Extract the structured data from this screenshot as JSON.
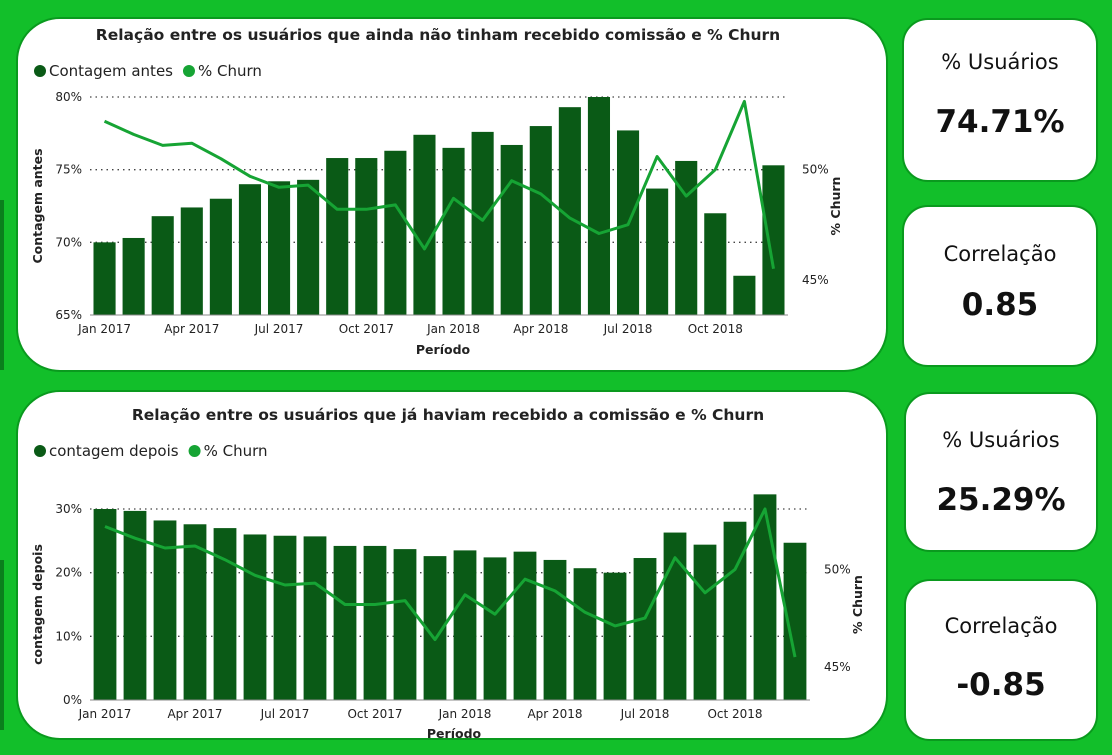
{
  "colors": {
    "background": "#12bf2a",
    "bar": "#0a5a16",
    "line": "#16a434",
    "grid": "#444444"
  },
  "kpis": [
    {
      "label": "% Usuários",
      "value": "74.71%"
    },
    {
      "label": "Correlação",
      "value": "0.85"
    },
    {
      "label": "% Usuários",
      "value": "25.29%"
    },
    {
      "label": "Correlação",
      "value": "-0.85"
    }
  ],
  "chart_data": [
    {
      "type": "bar",
      "title": "Relação entre os usuários que ainda não tinham recebido comissão e % Churn",
      "xlabel": "Período",
      "ylabel": "Contagem antes",
      "y2label": "% Churn",
      "legend_position": "top-left",
      "grid": true,
      "x_ticks": [
        "Jan 2017",
        "Apr 2017",
        "Jul 2017",
        "Oct 2017",
        "Jan 2018",
        "Apr 2018",
        "Jul 2018",
        "Oct 2018"
      ],
      "y_ticks": [
        "65%",
        "70%",
        "75%",
        "80%"
      ],
      "y2_ticks": [
        "45%",
        "50%"
      ],
      "ylim": [
        65,
        80
      ],
      "y2lim": [
        43.4,
        53.3
      ],
      "series": [
        {
          "name": "Contagem antes",
          "type": "bar",
          "values": [
            70.0,
            70.3,
            71.8,
            72.4,
            73.0,
            74.0,
            74.2,
            74.3,
            75.8,
            75.8,
            76.3,
            77.4,
            76.5,
            77.6,
            76.7,
            78.0,
            79.3,
            80.0,
            77.7,
            73.7,
            75.6,
            72.0,
            67.7,
            75.3
          ]
        },
        {
          "name": "% Churn",
          "type": "line",
          "values": [
            52.2,
            51.6,
            51.1,
            51.2,
            50.5,
            49.7,
            49.2,
            49.3,
            48.2,
            48.2,
            48.4,
            46.4,
            48.7,
            47.7,
            49.5,
            48.9,
            47.8,
            47.1,
            47.5,
            50.6,
            48.8,
            50.0,
            53.1,
            45.5
          ]
        }
      ]
    },
    {
      "type": "bar",
      "title": "Relação entre os usuários que já haviam recebido a comissão e % Churn",
      "xlabel": "Período",
      "ylabel": "contagem depois",
      "y2label": "% Churn",
      "legend_position": "top-left",
      "grid": true,
      "x_ticks": [
        "Jan 2017",
        "Apr 2017",
        "Jul 2017",
        "Oct 2017",
        "Jan 2018",
        "Apr 2018",
        "Jul 2018",
        "Oct 2018"
      ],
      "y_ticks": [
        "0%",
        "10%",
        "20%",
        "30%"
      ],
      "y2_ticks": [
        "45%",
        "50%"
      ],
      "ylim": [
        0,
        30
      ],
      "y2lim": [
        43.3,
        53.1
      ],
      "series": [
        {
          "name": "contagem depois",
          "type": "bar",
          "values": [
            30.0,
            29.7,
            28.2,
            27.6,
            27.0,
            26.0,
            25.8,
            25.7,
            24.2,
            24.2,
            23.7,
            22.6,
            23.5,
            22.4,
            23.3,
            22.0,
            20.7,
            20.0,
            22.3,
            26.3,
            24.4,
            28.0,
            32.3,
            24.7
          ]
        },
        {
          "name": "% Churn",
          "type": "line",
          "values": [
            52.2,
            51.6,
            51.1,
            51.2,
            50.5,
            49.7,
            49.2,
            49.3,
            48.2,
            48.2,
            48.4,
            46.4,
            48.7,
            47.7,
            49.5,
            48.9,
            47.8,
            47.1,
            47.5,
            50.6,
            48.8,
            50.0,
            53.1,
            45.5
          ]
        }
      ]
    }
  ]
}
